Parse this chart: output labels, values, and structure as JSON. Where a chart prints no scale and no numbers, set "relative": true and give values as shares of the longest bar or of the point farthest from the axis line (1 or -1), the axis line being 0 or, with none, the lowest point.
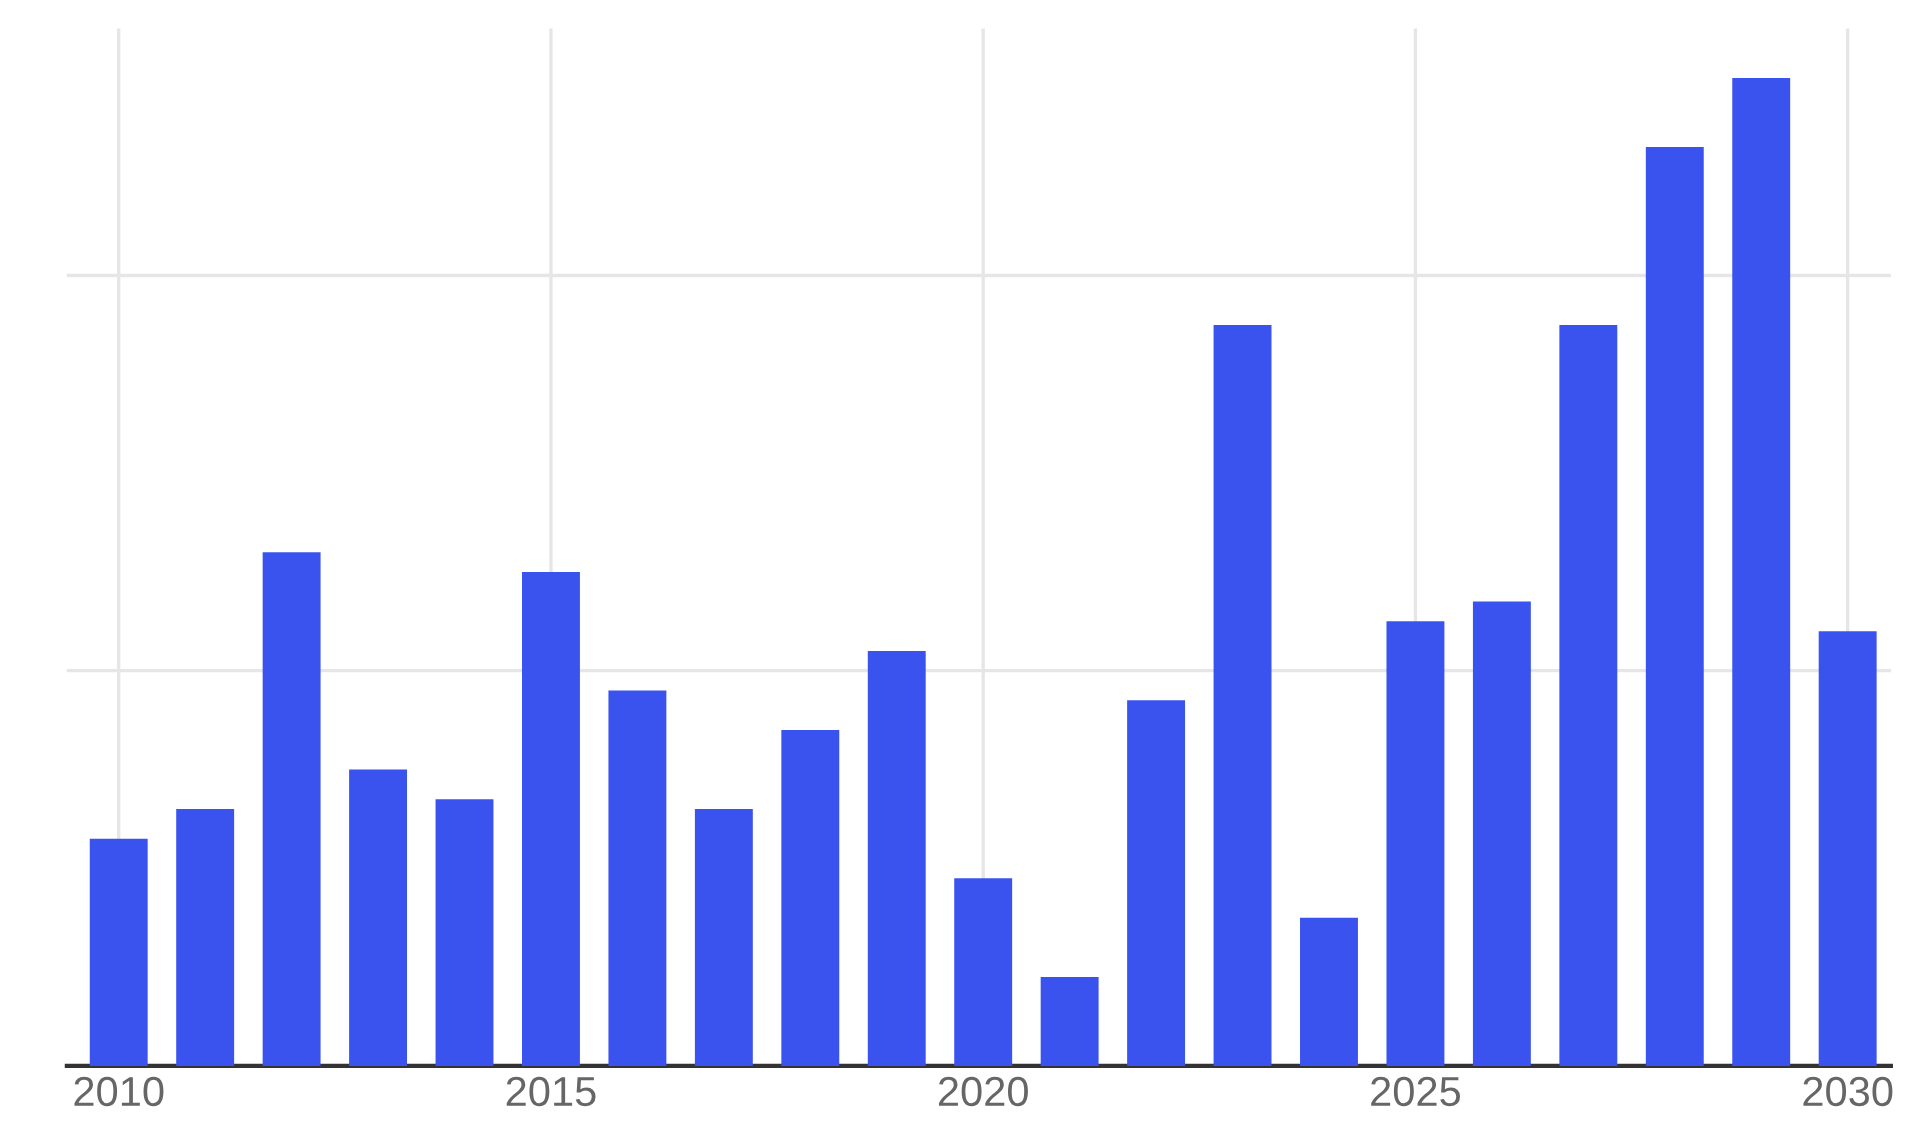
{
  "chart_data": {
    "type": "bar",
    "relative": true,
    "x": [
      2010,
      2011,
      2012,
      2013,
      2014,
      2015,
      2016,
      2017,
      2018,
      2019,
      2020,
      2021,
      2022,
      2023,
      2024,
      2025,
      2026,
      2027,
      2028,
      2029,
      2030
    ],
    "values": [
      0.23,
      0.26,
      0.52,
      0.3,
      0.27,
      0.5,
      0.38,
      0.26,
      0.34,
      0.42,
      0.19,
      0.09,
      0.37,
      0.75,
      0.15,
      0.45,
      0.47,
      0.75,
      0.93,
      1,
      0.44
    ],
    "color": "#3a53ef",
    "xlim": [
      2009.4,
      2030.5
    ],
    "xticks": [
      2010,
      2015,
      2020,
      2025,
      2030
    ],
    "grid": true,
    "tick_labels": "x"
  }
}
